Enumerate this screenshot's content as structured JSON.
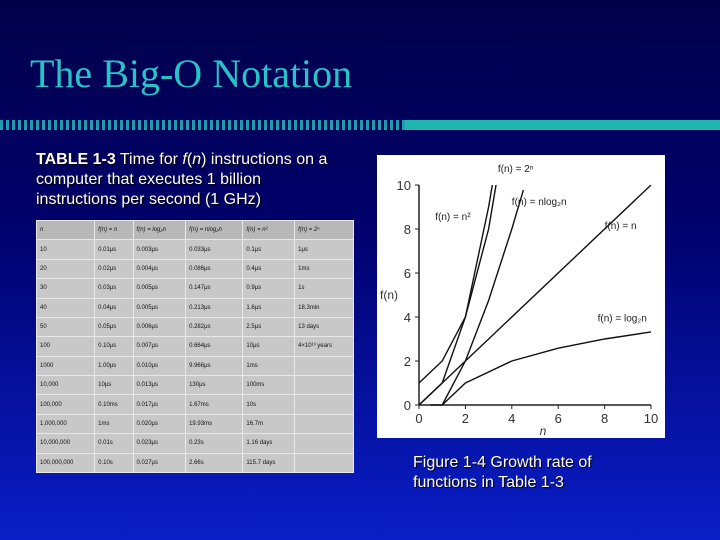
{
  "slide": {
    "title": "The Big-O Notation"
  },
  "caption": {
    "label": "TABLE 1-3",
    "text_before": " Time for ",
    "fn": "f",
    "paren_open": "(",
    "n": "n",
    "paren_close": ")",
    "text_after": " instructions on a computer that executes 1 billion instructions per second (1 GHz)"
  },
  "table": {
    "headers": [
      "n",
      "f(n) = n",
      "f(n) = log₂n",
      "f(n) = nlog₂n",
      "f(n) = n²",
      "f(n) = 2ⁿ"
    ],
    "rows": [
      [
        "10",
        "0.01μs",
        "0.003μs",
        "0.033μs",
        "0.1μs",
        "1μs"
      ],
      [
        "20",
        "0.02μs",
        "0.004μs",
        "0.086μs",
        "0.4μs",
        "1ms"
      ],
      [
        "30",
        "0.03μs",
        "0.005μs",
        "0.147μs",
        "0.9μs",
        "1s"
      ],
      [
        "40",
        "0.04μs",
        "0.005μs",
        "0.213μs",
        "1.6μs",
        "18.3min"
      ],
      [
        "50",
        "0.05μs",
        "0.006μs",
        "0.282μs",
        "2.5μs",
        "13 days"
      ],
      [
        "100",
        "0.10μs",
        "0.007μs",
        "0.664μs",
        "10μs",
        "4×10¹³ years"
      ],
      [
        "1000",
        "1.00μs",
        "0.010μs",
        "9.966μs",
        "1ms",
        ""
      ],
      [
        "10,000",
        "10μs",
        "0.013μs",
        "130μs",
        "100ms",
        ""
      ],
      [
        "100,000",
        "0.10ms",
        "0.017μs",
        "1.67ms",
        "10s",
        ""
      ],
      [
        "1,000,000",
        "1ms",
        "0.020μs",
        "19.93ms",
        "16.7m",
        ""
      ],
      [
        "10,000,000",
        "0.01s",
        "0.023μs",
        "0.23s",
        "1.16 days",
        ""
      ],
      [
        "100,000,000",
        "0.10s",
        "0.027μs",
        "2.66s",
        "115.7 days",
        ""
      ]
    ]
  },
  "chart_data": {
    "type": "line",
    "xlabel": "n",
    "ylabel": "f(n)",
    "xlim": [
      0,
      10
    ],
    "ylim": [
      0,
      10
    ],
    "x_ticks": [
      "0",
      "2",
      "4",
      "6",
      "8",
      "10"
    ],
    "y_ticks": [
      "0",
      "2",
      "4",
      "6",
      "8",
      "10"
    ],
    "series": [
      {
        "name": "f(n) = 2ⁿ",
        "x": [
          0,
          1,
          2,
          3,
          3.32
        ],
        "y": [
          1,
          2,
          4,
          8,
          10
        ]
      },
      {
        "name": "f(n) = n²",
        "x": [
          0,
          1,
          2,
          3,
          3.16
        ],
        "y": [
          0,
          1,
          4,
          9,
          10
        ]
      },
      {
        "name": "f(n) = nlog₂n",
        "x": [
          0.5,
          1,
          2,
          3,
          4,
          4.5
        ],
        "y": [
          0,
          0,
          2,
          4.75,
          8,
          9.77
        ]
      },
      {
        "name": "f(n) = n",
        "x": [
          0,
          10
        ],
        "y": [
          0,
          10
        ]
      },
      {
        "name": "f(n) = log₂n",
        "x": [
          1,
          2,
          4,
          6,
          8,
          10
        ],
        "y": [
          0,
          1,
          2,
          2.58,
          3,
          3.32
        ]
      }
    ],
    "label_pos": [
      {
        "x": 3.4,
        "y": 10.6
      },
      {
        "x": 0.7,
        "y": 8.4
      },
      {
        "x": 4.0,
        "y": 9.1
      },
      {
        "x": 8.0,
        "y": 8.0
      },
      {
        "x": 7.7,
        "y": 3.8
      }
    ],
    "grid": false,
    "legend": "none"
  },
  "figure_caption": "Figure 1-4 Growth rate of functions in Table 1-3"
}
